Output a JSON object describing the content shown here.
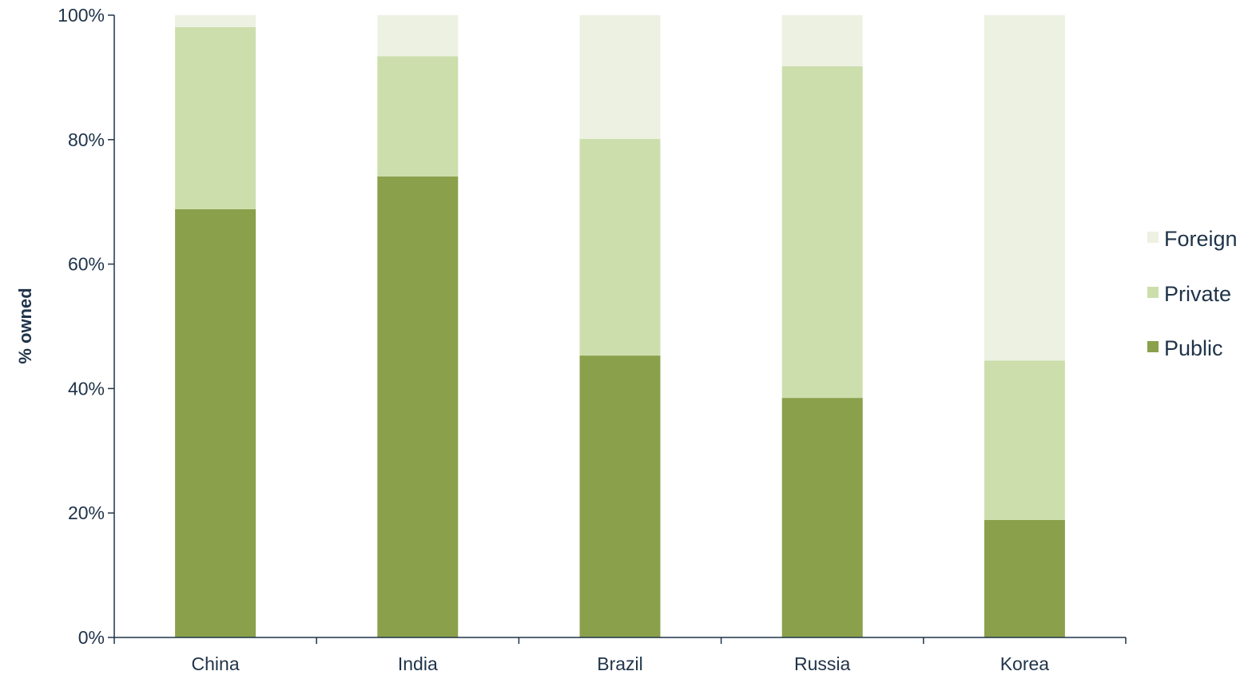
{
  "chart_data": {
    "type": "bar",
    "stacked": true,
    "categories": [
      "China",
      "India",
      "Brazil",
      "Russia",
      "Korea"
    ],
    "series": [
      {
        "name": "Public",
        "values": [
          68.8,
          74.1,
          45.3,
          38.5,
          18.9
        ],
        "color": "#8aa04b"
      },
      {
        "name": "Private",
        "values": [
          29.3,
          19.3,
          34.8,
          53.3,
          25.6
        ],
        "color": "#cddead"
      },
      {
        "name": "Foreign",
        "values": [
          1.9,
          6.6,
          19.9,
          8.2,
          55.5
        ],
        "color": "#edf1e2"
      }
    ],
    "title": "",
    "xlabel": "",
    "ylabel": "% owned",
    "ylim": [
      0,
      100
    ],
    "yticks": [
      "0%",
      "20%",
      "40%",
      "60%",
      "80%",
      "100%"
    ],
    "legend": {
      "position": "right",
      "order": [
        "Foreign",
        "Private",
        "Public"
      ]
    },
    "grid": false,
    "axis_color": "#1f3349"
  }
}
